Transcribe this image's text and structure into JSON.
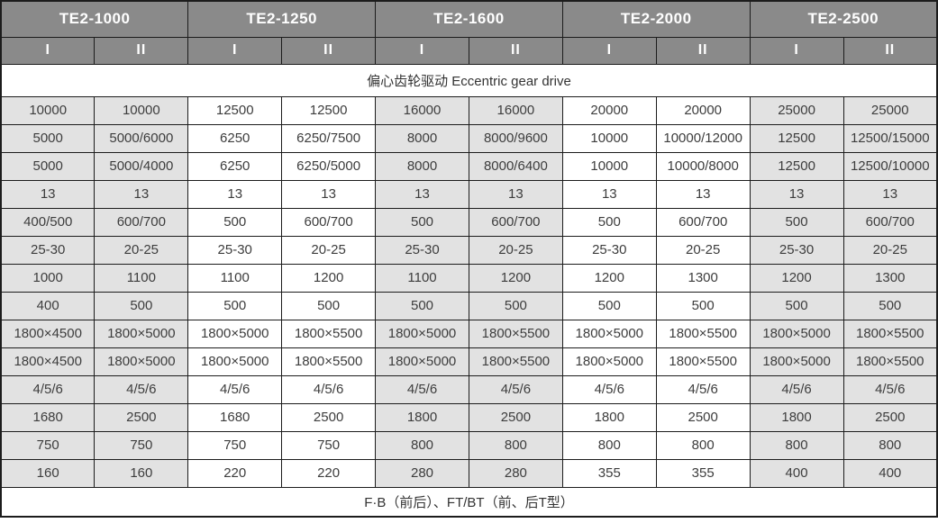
{
  "table": {
    "models": [
      {
        "name": "TE2-1000",
        "variants": [
          "I",
          "II"
        ]
      },
      {
        "name": "TE2-1250",
        "variants": [
          "I",
          "II"
        ]
      },
      {
        "name": "TE2-1600",
        "variants": [
          "I",
          "II"
        ]
      },
      {
        "name": "TE2-2000",
        "variants": [
          "I",
          "II"
        ]
      },
      {
        "name": "TE2-2500",
        "variants": [
          "I",
          "II"
        ]
      }
    ],
    "shaded_model_indices": [
      0,
      2,
      4
    ],
    "merged": {
      "drive": "偏心齿轮驱动  Eccentric gear drive",
      "footer": "F·B（前后）、FT/BT（前、后T型）"
    },
    "rows": [
      [
        "10000",
        "10000",
        "12500",
        "12500",
        "16000",
        "16000",
        "20000",
        "20000",
        "25000",
        "25000"
      ],
      [
        "5000",
        "5000/6000",
        "6250",
        "6250/7500",
        "8000",
        "8000/9600",
        "10000",
        "10000/12000",
        "12500",
        "12500/15000"
      ],
      [
        "5000",
        "5000/4000",
        "6250",
        "6250/5000",
        "8000",
        "8000/6400",
        "10000",
        "10000/8000",
        "12500",
        "12500/10000"
      ],
      [
        "13",
        "13",
        "13",
        "13",
        "13",
        "13",
        "13",
        "13",
        "13",
        "13"
      ],
      [
        "400/500",
        "600/700",
        "500",
        "600/700",
        "500",
        "600/700",
        "500",
        "600/700",
        "500",
        "600/700"
      ],
      [
        "25-30",
        "20-25",
        "25-30",
        "20-25",
        "25-30",
        "20-25",
        "25-30",
        "20-25",
        "25-30",
        "20-25"
      ],
      [
        "1000",
        "1100",
        "1100",
        "1200",
        "1100",
        "1200",
        "1200",
        "1300",
        "1200",
        "1300"
      ],
      [
        "400",
        "500",
        "500",
        "500",
        "500",
        "500",
        "500",
        "500",
        "500",
        "500"
      ],
      [
        "1800×4500",
        "1800×5000",
        "1800×5000",
        "1800×5500",
        "1800×5000",
        "1800×5500",
        "1800×5000",
        "1800×5500",
        "1800×5000",
        "1800×5500"
      ],
      [
        "1800×4500",
        "1800×5000",
        "1800×5000",
        "1800×5500",
        "1800×5000",
        "1800×5500",
        "1800×5000",
        "1800×5500",
        "1800×5000",
        "1800×5500"
      ],
      [
        "4/5/6",
        "4/5/6",
        "4/5/6",
        "4/5/6",
        "4/5/6",
        "4/5/6",
        "4/5/6",
        "4/5/6",
        "4/5/6",
        "4/5/6"
      ],
      [
        "1680",
        "2500",
        "1680",
        "2500",
        "1800",
        "2500",
        "1800",
        "2500",
        "1800",
        "2500"
      ],
      [
        "750",
        "750",
        "750",
        "750",
        "800",
        "800",
        "800",
        "800",
        "800",
        "800"
      ],
      [
        "160",
        "160",
        "220",
        "220",
        "280",
        "280",
        "355",
        "355",
        "400",
        "400"
      ]
    ],
    "colors": {
      "header_bg": "#8a8a8a",
      "header_text": "#ffffff",
      "shaded_col_bg": "#e2e2e2",
      "white_col_bg": "#ffffff",
      "border": "#1c1c1c",
      "cell_text": "#3d3d3d"
    }
  }
}
